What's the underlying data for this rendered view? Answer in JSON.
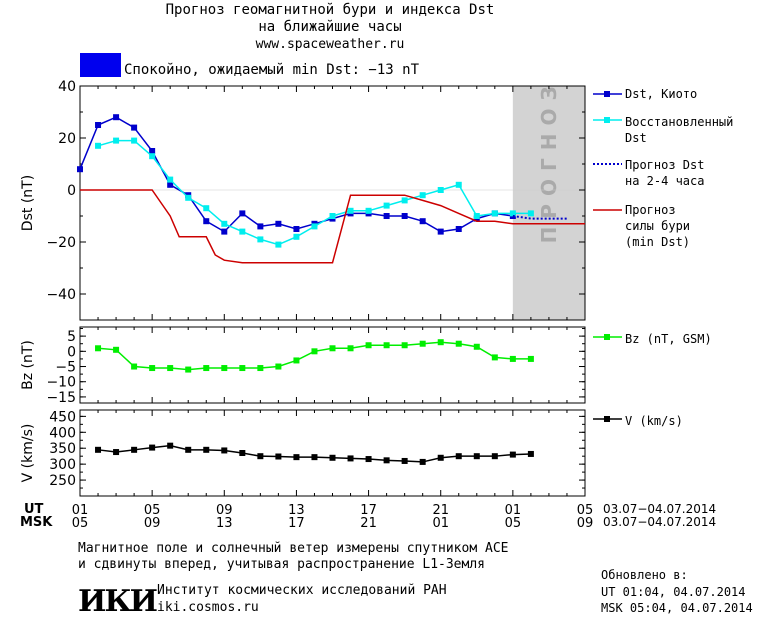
{
  "header": {
    "title_line1": "Прогноз геомагнитной бури и индекса Dst",
    "title_line2": "на ближайшие часы",
    "url": "www.spaceweather.ru"
  },
  "status": {
    "color": "#0000ee",
    "text": "Спокойно, ожидаемый min Dst: −13 nT"
  },
  "forecast_zone_label": "ПРОГНОЗ",
  "legend": {
    "dst_kyoto": "Dst, Киото",
    "restored_l1": "Восстановленный",
    "restored_l2": "Dst",
    "forecast_l1": "Прогноз Dst",
    "forecast_l2": "на 2-4 часа",
    "storm_l1": "Прогноз",
    "storm_l2": "силы бури",
    "storm_l3": "(min Dst)",
    "bz": "Bz (nT, GSM)",
    "v": "V (km/s)"
  },
  "time_axis": {
    "ut_label": "UT",
    "msk_label": "MSK",
    "ut_ticks": [
      "01",
      "05",
      "09",
      "13",
      "17",
      "21",
      "01",
      "05"
    ],
    "msk_ticks": [
      "05",
      "09",
      "13",
      "17",
      "21",
      "01",
      "05",
      "09"
    ],
    "date_range": "03.07−04.07.2014"
  },
  "footer": {
    "note_line1": "Магнитное поле и солнечный ветер измерены спутником ACE",
    "note_line2": "и сдвинуты вперед, учитывая распространение L1-Земля",
    "updated_label": "Обновлено в:",
    "updated_ut": "UT  01:04, 04.07.2014",
    "updated_msk": "MSK 05:04, 04.07.2014",
    "institute": "Институт космических исследований РАН",
    "site": "iki.cosmos.ru",
    "logo_text": "ИКИ"
  },
  "chart_data": [
    {
      "type": "line",
      "ylabel": "Dst (nT)",
      "ylim": [
        -50,
        40
      ],
      "yticks": [
        40,
        20,
        0,
        -20,
        -40
      ],
      "xlim": [
        0,
        28
      ],
      "forecast_zone": [
        24,
        28
      ],
      "series": [
        {
          "name": "Dst, Киото",
          "color": "#0000cc",
          "marker": "square",
          "x": [
            0,
            1,
            2,
            3,
            4,
            5,
            6,
            7,
            8,
            9,
            10,
            11,
            12,
            13,
            14,
            15,
            16,
            17,
            18,
            19,
            20,
            21,
            22,
            23,
            24
          ],
          "y": [
            8,
            25,
            28,
            24,
            15,
            2,
            -2,
            -12,
            -16,
            -9,
            -14,
            -13,
            -15,
            -13,
            -11,
            -9,
            -9,
            -10,
            -10,
            -12,
            -16,
            -15,
            -11,
            -9,
            -10
          ]
        },
        {
          "name": "Восстановленный Dst",
          "color": "#00eeee",
          "marker": "square",
          "x": [
            1,
            2,
            3,
            4,
            5,
            6,
            7,
            8,
            9,
            10,
            11,
            12,
            13,
            14,
            15,
            16,
            17,
            18,
            19,
            20,
            21,
            22,
            23,
            24,
            25
          ],
          "y": [
            17,
            19,
            19,
            13,
            4,
            -3,
            -7,
            -13,
            -16,
            -19,
            -21,
            -18,
            -14,
            -10,
            -8,
            -8,
            -6,
            -4,
            -2,
            0,
            2,
            -10,
            -9,
            -9,
            -9
          ]
        },
        {
          "name": "Прогноз Dst на 2-4 часа",
          "color": "#0000cc",
          "style": "dotted",
          "x": [
            24,
            25,
            26,
            27
          ],
          "y": [
            -10,
            -11,
            -11,
            -11
          ]
        },
        {
          "name": "Прогноз силы бури (min Dst)",
          "color": "#cc0000",
          "x": [
            0,
            1,
            2,
            3,
            4,
            4.5,
            5,
            5.5,
            6,
            7,
            7.5,
            8,
            9,
            10,
            11,
            12,
            13,
            14,
            15,
            16,
            17,
            18,
            19,
            20,
            21,
            22,
            23,
            24,
            25,
            26,
            27,
            28
          ],
          "y": [
            0,
            0,
            0,
            0,
            0,
            -5,
            -10,
            -18,
            -18,
            -18,
            -25,
            -27,
            -28,
            -28,
            -28,
            -28,
            -28,
            -28,
            -2,
            -2,
            -2,
            -2,
            -4,
            -6,
            -9,
            -12,
            -12,
            -13,
            -13,
            -13,
            -13,
            -13
          ]
        }
      ]
    },
    {
      "type": "line",
      "ylabel": "Bz (nT)",
      "ylim": [
        -17,
        8
      ],
      "yticks": [
        5,
        0,
        -5,
        -10,
        -15
      ],
      "xlim": [
        0,
        28
      ],
      "series": [
        {
          "name": "Bz (nT, GSM)",
          "color": "#00ee00",
          "marker": "square",
          "x": [
            1,
            2,
            3,
            4,
            5,
            6,
            7,
            8,
            9,
            10,
            11,
            12,
            13,
            14,
            15,
            16,
            17,
            18,
            19,
            20,
            21,
            22,
            23,
            24,
            25
          ],
          "y": [
            1,
            0.5,
            -5,
            -5.5,
            -5.5,
            -6,
            -5.5,
            -5.5,
            -5.5,
            -5.5,
            -5,
            -3,
            0,
            1,
            1,
            2,
            2,
            2,
            2.5,
            3,
            2.5,
            1.5,
            -2,
            -2.5,
            -2.5
          ]
        }
      ]
    },
    {
      "type": "line",
      "ylabel": "V (km/s)",
      "ylim": [
        200,
        470
      ],
      "yticks": [
        450,
        400,
        350,
        300,
        250
      ],
      "xlim": [
        0,
        28
      ],
      "series": [
        {
          "name": "V (km/s)",
          "color": "#000000",
          "marker": "square",
          "x": [
            1,
            2,
            3,
            4,
            5,
            6,
            7,
            8,
            9,
            10,
            11,
            12,
            13,
            14,
            15,
            16,
            17,
            18,
            19,
            20,
            21,
            22,
            23,
            24,
            25
          ],
          "y": [
            345,
            338,
            345,
            352,
            358,
            345,
            345,
            343,
            335,
            325,
            324,
            322,
            322,
            320,
            318,
            316,
            312,
            310,
            307,
            320,
            325,
            325,
            325,
            330,
            332
          ]
        }
      ]
    }
  ]
}
